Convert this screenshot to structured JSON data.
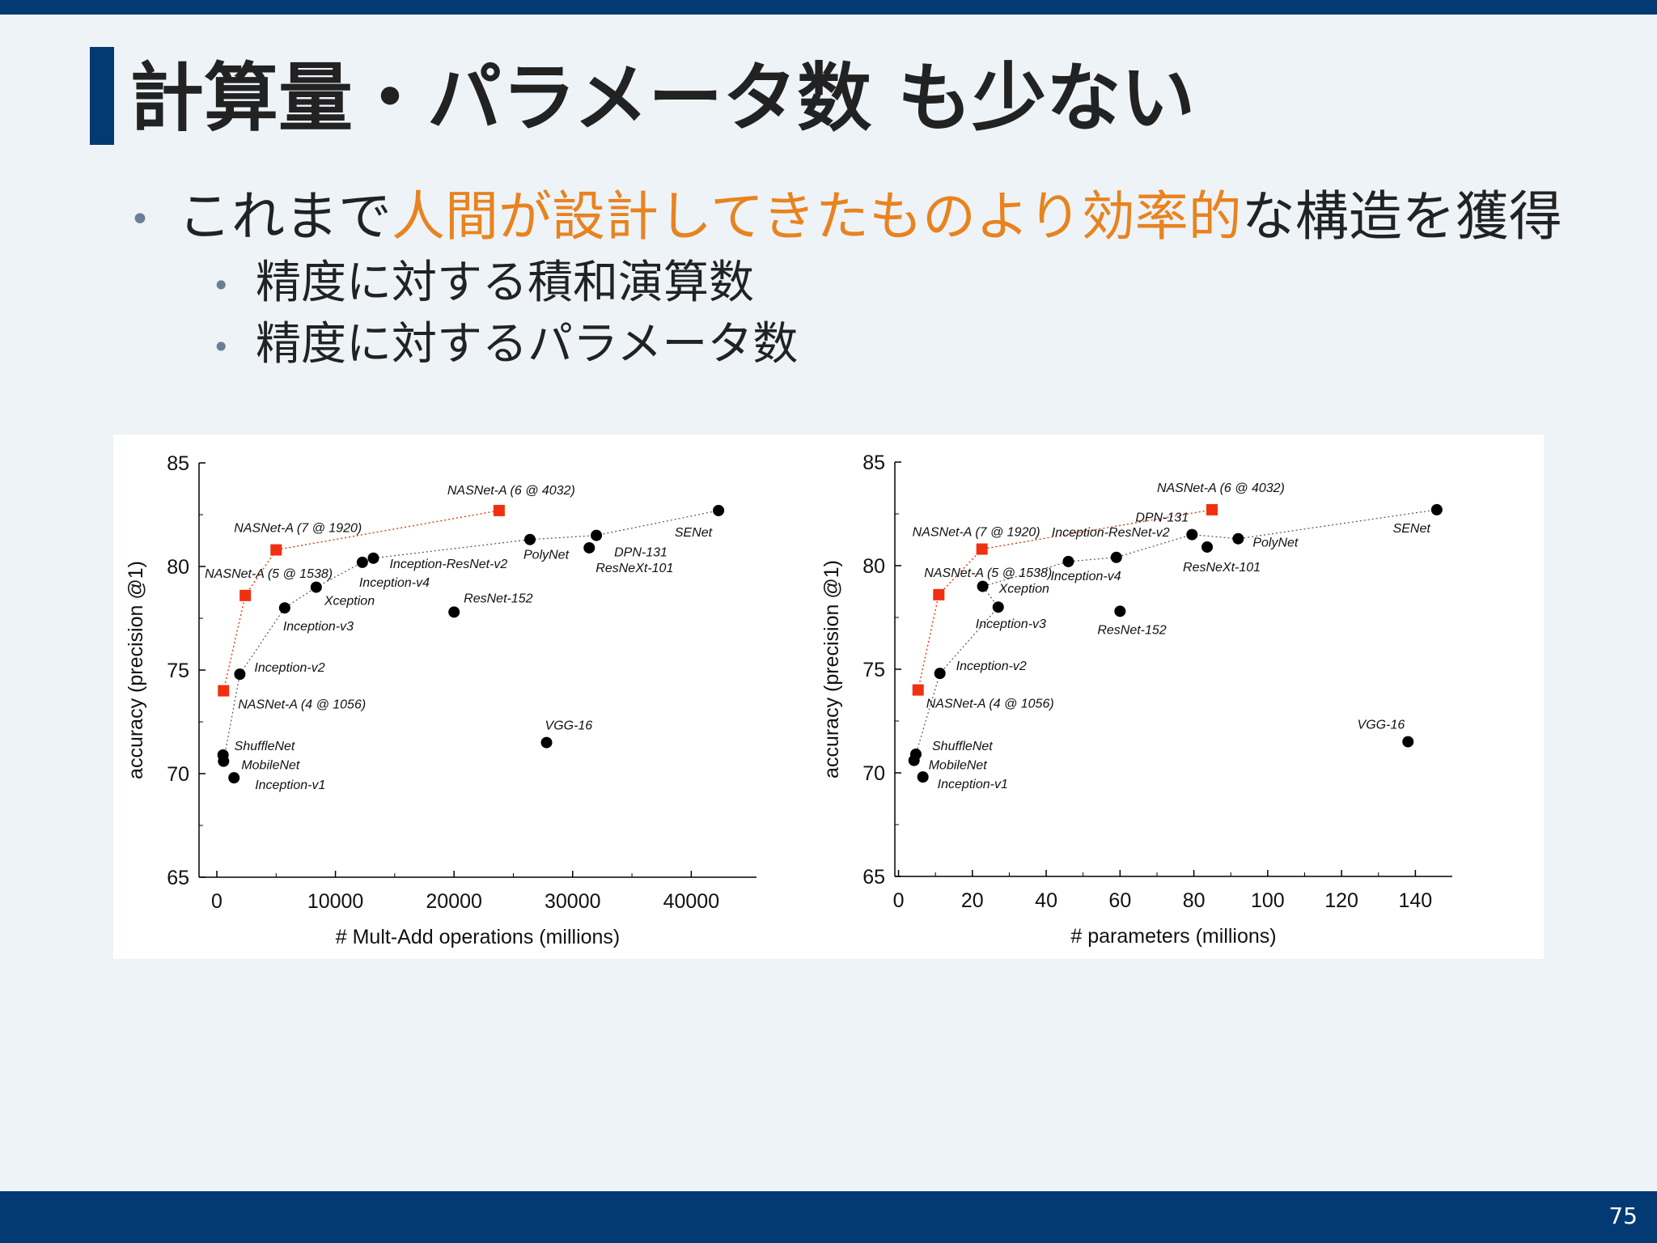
{
  "slide": {
    "title": "計算量・パラメータ数 も少ない",
    "bullets": [
      {
        "text_before": "これまで",
        "highlight": "人間が設計してきたものより効率的",
        "text_after": "な構造を獲得",
        "sub_bullets": [
          "精度に対する積和演算数",
          "精度に対するパラメータ数"
        ]
      }
    ],
    "page_number": "75",
    "colors": {
      "accent": "#043a74",
      "highlight": "#e8831f",
      "nasnet": "#f03010"
    }
  },
  "chart_data": [
    {
      "type": "scatter",
      "title": "",
      "xlabel": "# Mult-Add operations (millions)",
      "ylabel": "accuracy (precision @1)",
      "xlim": [
        -1500,
        45500
      ],
      "ylim": [
        65,
        85
      ],
      "xticks": [
        0,
        10000,
        20000,
        30000,
        40000
      ],
      "xtick_labels": [
        "0",
        "10000",
        "20000",
        "30000",
        "40000"
      ],
      "yticks": [
        65,
        70,
        75,
        80,
        85
      ],
      "ytick_labels": [
        "65",
        "70",
        "75",
        "80",
        "85"
      ],
      "grid": false,
      "series": [
        {
          "marker": "circle",
          "color": "#000000",
          "points": [
            {
              "label": "ShuffleNet",
              "x": 524,
              "y": 70.9
            },
            {
              "label": "MobileNet",
              "x": 569,
              "y": 70.6
            },
            {
              "label": "Inception-v1",
              "x": 1448,
              "y": 69.8
            },
            {
              "label": "Inception-v2",
              "x": 1940,
              "y": 74.8
            },
            {
              "label": "Inception-v3",
              "x": 5720,
              "y": 78.0
            },
            {
              "label": "Xception",
              "x": 8380,
              "y": 79.0
            },
            {
              "label": "Inception-v4",
              "x": 12270,
              "y": 80.2
            },
            {
              "label": "Inception-ResNet-v2",
              "x": 13200,
              "y": 80.4
            },
            {
              "label": "ResNet-152",
              "x": 20000,
              "y": 77.8
            },
            {
              "label": "PolyNet",
              "x": 26400,
              "y": 81.3
            },
            {
              "label": "ResNeXt-101",
              "x": 31400,
              "y": 80.9
            },
            {
              "label": "DPN-131",
              "x": 32000,
              "y": 81.5
            },
            {
              "label": "SENet",
              "x": 42300,
              "y": 82.7
            },
            {
              "label": "VGG-16",
              "x": 27800,
              "y": 71.5
            }
          ]
        },
        {
          "marker": "square",
          "color": "#f03010",
          "points": [
            {
              "label": "NASNet-A (4 @ 1056)",
              "x": 564,
              "y": 74.0
            },
            {
              "label": "NASNet-A (5 @ 1538)",
              "x": 2400,
              "y": 78.6
            },
            {
              "label": "NASNet-A (7 @ 1920)",
              "x": 5000,
              "y": 80.8
            },
            {
              "label": "NASNet-A (6 @ 4032)",
              "x": 23800,
              "y": 82.7
            }
          ]
        }
      ]
    },
    {
      "type": "scatter",
      "title": "",
      "xlabel": "# parameters (millions)",
      "ylabel": "accuracy (precision @1)",
      "xlim": [
        -1,
        150
      ],
      "ylim": [
        65,
        85
      ],
      "xticks": [
        0,
        20,
        40,
        60,
        80,
        100,
        120,
        140
      ],
      "xtick_labels": [
        "0",
        "20",
        "40",
        "60",
        "80",
        "100",
        "120",
        "140"
      ],
      "yticks": [
        65,
        70,
        75,
        80,
        85
      ],
      "ytick_labels": [
        "65",
        "70",
        "75",
        "80",
        "85"
      ],
      "grid": false,
      "series": [
        {
          "marker": "circle",
          "color": "#000000",
          "points": [
            {
              "label": "ShuffleNet",
              "x": 4.7,
              "y": 70.9
            },
            {
              "label": "MobileNet",
              "x": 4.2,
              "y": 70.6
            },
            {
              "label": "Inception-v1",
              "x": 6.6,
              "y": 69.8
            },
            {
              "label": "Inception-v2",
              "x": 11.2,
              "y": 74.8
            },
            {
              "label": "Inception-v3",
              "x": 27.0,
              "y": 78.0
            },
            {
              "label": "Xception",
              "x": 22.8,
              "y": 79.0
            },
            {
              "label": "Inception-v4",
              "x": 46.0,
              "y": 80.2
            },
            {
              "label": "Inception-ResNet-v2",
              "x": 59.0,
              "y": 80.4
            },
            {
              "label": "ResNet-152",
              "x": 60.0,
              "y": 77.8
            },
            {
              "label": "DPN-131",
              "x": 79.5,
              "y": 81.5
            },
            {
              "label": "ResNeXt-101",
              "x": 83.6,
              "y": 80.9
            },
            {
              "label": "PolyNet",
              "x": 92.0,
              "y": 81.3
            },
            {
              "label": "SENet",
              "x": 145.8,
              "y": 82.7
            },
            {
              "label": "VGG-16",
              "x": 138.0,
              "y": 71.5
            }
          ]
        },
        {
          "marker": "square",
          "color": "#f03010",
          "points": [
            {
              "label": "NASNet-A (4 @ 1056)",
              "x": 5.3,
              "y": 74.0
            },
            {
              "label": "NASNet-A (5 @ 1538)",
              "x": 10.9,
              "y": 78.6
            },
            {
              "label": "NASNet-A (7 @ 1920)",
              "x": 22.6,
              "y": 80.8
            },
            {
              "label": "NASNet-A (6 @ 4032)",
              "x": 84.9,
              "y": 82.7
            }
          ]
        }
      ]
    }
  ]
}
